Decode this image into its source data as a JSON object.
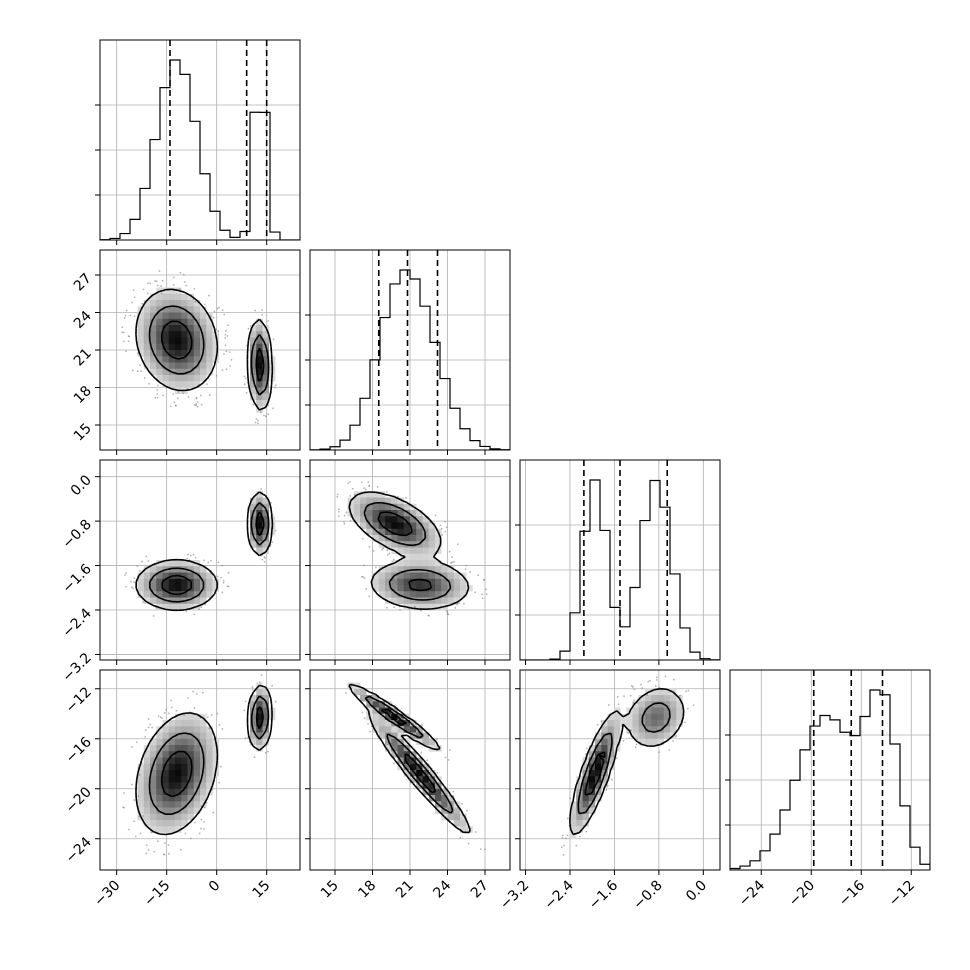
{
  "chart_data": {
    "type": "corner",
    "grid": true,
    "parameters": [
      {
        "range": [
          -35,
          25
        ],
        "ticks": [
          -30,
          -15,
          0,
          15
        ],
        "tick_labels": [
          "−30",
          "−15",
          "0",
          "15"
        ],
        "quantiles": [
          -14,
          9,
          15
        ],
        "components": [
          {
            "mu": -12,
            "sd": 6,
            "w": 0.5
          },
          {
            "mu": 13,
            "sd": 1.8,
            "w": 0.5
          }
        ]
      },
      {
        "range": [
          13,
          29
        ],
        "ticks": [
          15,
          18,
          21,
          24,
          27
        ],
        "tick_labels": [
          "15",
          "18",
          "21",
          "24",
          "27"
        ],
        "quantiles": [
          18.5,
          20.8,
          23.2
        ],
        "components": [
          {
            "mu": 21.8,
            "sd": 2.0,
            "w": 0.5
          },
          {
            "mu": 19.8,
            "sd": 1.8,
            "w": 0.5
          }
        ]
      },
      {
        "range": [
          -3.3,
          0.3
        ],
        "ticks": [
          -3.2,
          -2.4,
          -1.6,
          -0.8,
          0.0
        ],
        "tick_labels": [
          "−3.2",
          "−2.4",
          "−1.6",
          "−0.8",
          "0.0"
        ],
        "quantiles": [
          -2.15,
          -1.5,
          -0.65
        ],
        "components": [
          {
            "mu": -1.95,
            "sd": 0.22,
            "w": 0.5
          },
          {
            "mu": -0.85,
            "sd": 0.28,
            "w": 0.5
          }
        ]
      },
      {
        "range": [
          -26.5,
          -10.5
        ],
        "ticks": [
          -24,
          -20,
          -16,
          -12
        ],
        "tick_labels": [
          "−24",
          "−20",
          "−16",
          "−12"
        ],
        "quantiles": [
          -19.8,
          -16.8,
          -14.3
        ],
        "components": [
          {
            "mu": -18.8,
            "sd": 2.4,
            "w": 0.5
          },
          {
            "mu": -14.3,
            "sd": 1.3,
            "w": 0.5
          }
        ]
      }
    ]
  }
}
